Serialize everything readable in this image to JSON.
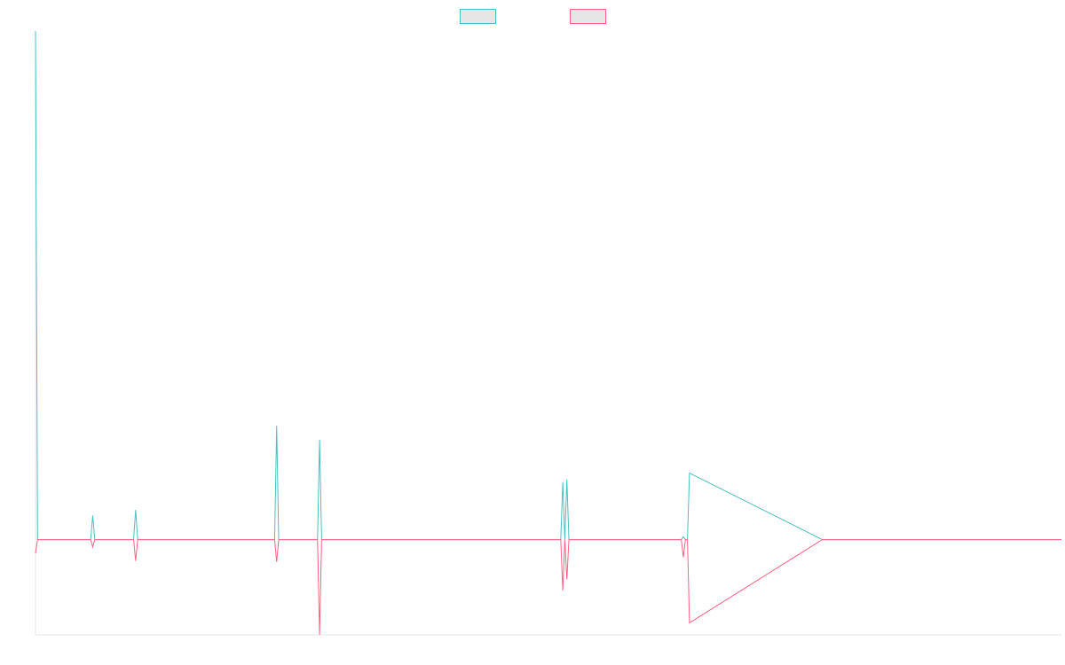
{
  "chart_data": {
    "type": "line",
    "title": "",
    "xlabel": "",
    "ylabel": "",
    "legend": {
      "placement": "top-center",
      "entries": [
        {
          "color": "#4bc0c0"
        },
        {
          "color": "#ff6384"
        }
      ]
    },
    "grid": false,
    "x": [
      0,
      1,
      27,
      28,
      29,
      48,
      49,
      50,
      117,
      118,
      119,
      138,
      139,
      140,
      257,
      258,
      259,
      260,
      261,
      316,
      317,
      318,
      319,
      320,
      385,
      386,
      387,
      398,
      399,
      400,
      498,
      499,
      500,
      501,
      502
    ],
    "xlim": [
      0,
      502
    ],
    "ylim": [
      -103,
      550
    ],
    "series": [
      {
        "color": "#4bc0c0",
        "values": [
          550,
          0,
          0,
          26,
          0,
          0,
          32,
          0,
          0,
          123,
          0,
          0,
          108,
          0,
          0,
          62,
          0,
          65,
          0,
          0,
          3,
          0,
          0,
          72,
          0,
          0,
          0,
          0,
          0,
          0,
          0,
          0,
          0,
          0,
          0
        ]
      },
      {
        "color": "#ff6384",
        "values": [
          -15,
          0,
          0,
          -8,
          0,
          0,
          -23,
          0,
          0,
          -24,
          0,
          0,
          -103,
          0,
          0,
          -55,
          0,
          -43,
          0,
          0,
          -19,
          0,
          0,
          -90,
          0,
          0,
          0,
          0,
          0,
          0,
          0,
          0,
          0,
          0,
          0
        ]
      }
    ]
  }
}
